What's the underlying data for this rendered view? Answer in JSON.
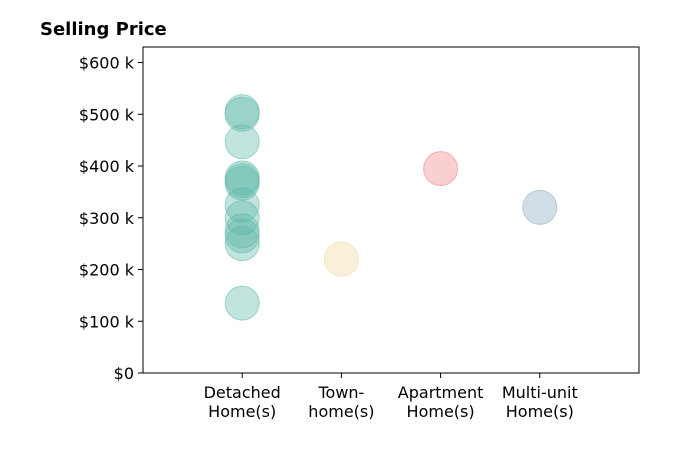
{
  "chart_data": {
    "type": "scatter",
    "title": "Selling Price",
    "xlabel": "",
    "ylabel": "",
    "ylim": [
      0,
      630
    ],
    "xlim": [
      -1,
      4
    ],
    "categories": [
      [
        "Detached",
        "Home(s)"
      ],
      [
        "Town-",
        "home(s)"
      ],
      [
        "Apartment",
        "Home(s)"
      ],
      [
        "Multi-unit",
        "Home(s)"
      ]
    ],
    "y_ticks": [
      0,
      100,
      200,
      300,
      400,
      500,
      600
    ],
    "y_tick_labels": [
      "$0",
      "$100 k",
      "$200 k",
      "$300 k",
      "$400 k",
      "$500 k",
      "$600 k"
    ],
    "grid": false,
    "legend": "none",
    "series": [
      {
        "category_index": 0,
        "color": "#5fb8a8",
        "values": [
          505,
          500,
          447,
          377,
          372,
          367,
          325,
          300,
          275,
          265,
          250,
          135
        ]
      },
      {
        "category_index": 1,
        "color": "#f1d79b",
        "values": [
          220
        ]
      },
      {
        "category_index": 2,
        "color": "#ee8089",
        "values": [
          395
        ]
      },
      {
        "category_index": 3,
        "color": "#8aa9c0",
        "values": [
          320
        ]
      }
    ]
  }
}
